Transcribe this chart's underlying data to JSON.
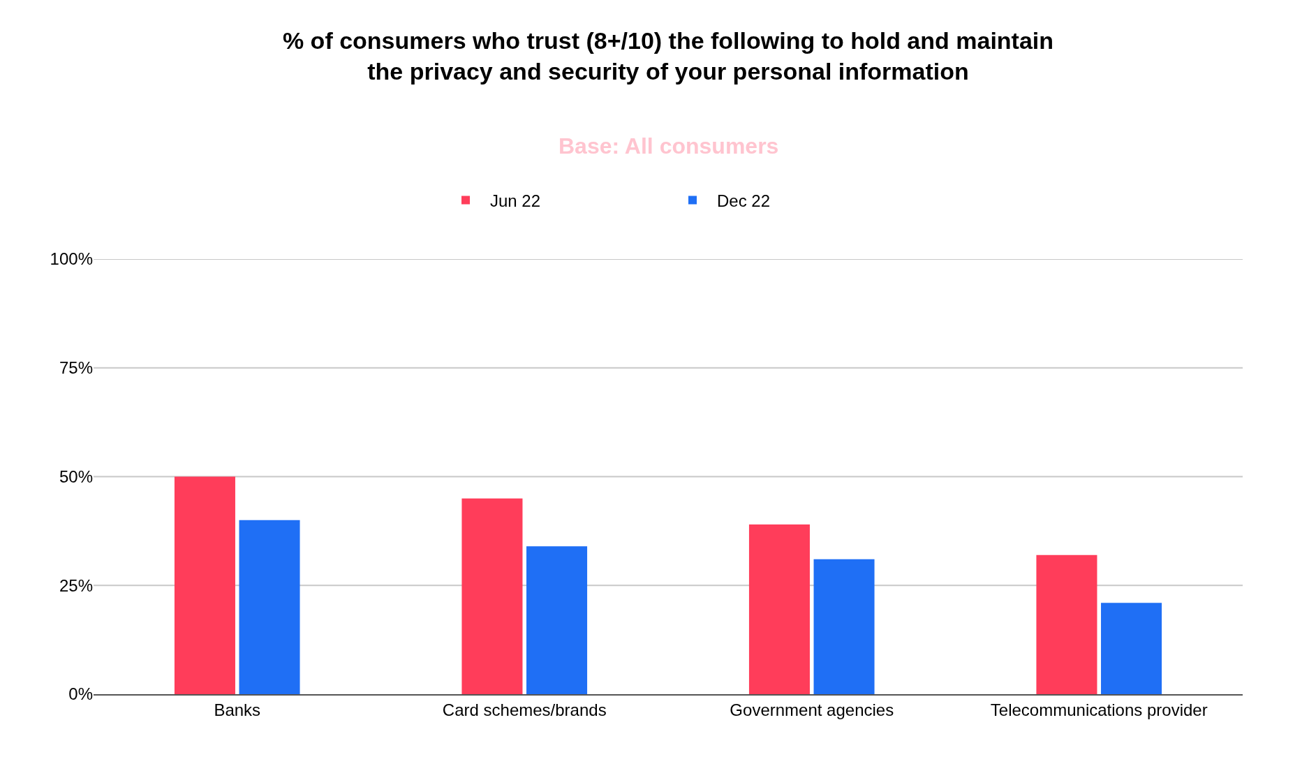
{
  "chart_data": {
    "type": "bar",
    "title": "% of consumers who trust (8+/10) the following to hold and maintain the privacy and security of your personal information",
    "subtitle": "Base: All consumers",
    "categories": [
      "Banks",
      "Card schemes/brands",
      "Government agencies",
      "Telecommunications provider"
    ],
    "series": [
      {
        "name": "Jun 22",
        "color": "#ff3d5a",
        "values": [
          50,
          45,
          39,
          32
        ]
      },
      {
        "name": "Dec 22",
        "color": "#1f6ff5",
        "values": [
          40,
          34,
          31,
          21
        ]
      }
    ],
    "ylim": [
      0,
      100
    ],
    "yticks": [
      {
        "value": 0,
        "label": "0%"
      },
      {
        "value": 25,
        "label": "25%"
      },
      {
        "value": 50,
        "label": "50%"
      },
      {
        "value": 75,
        "label": "75%"
      },
      {
        "value": 100,
        "label": "100%"
      }
    ],
    "grid": "y",
    "legend": "top"
  }
}
